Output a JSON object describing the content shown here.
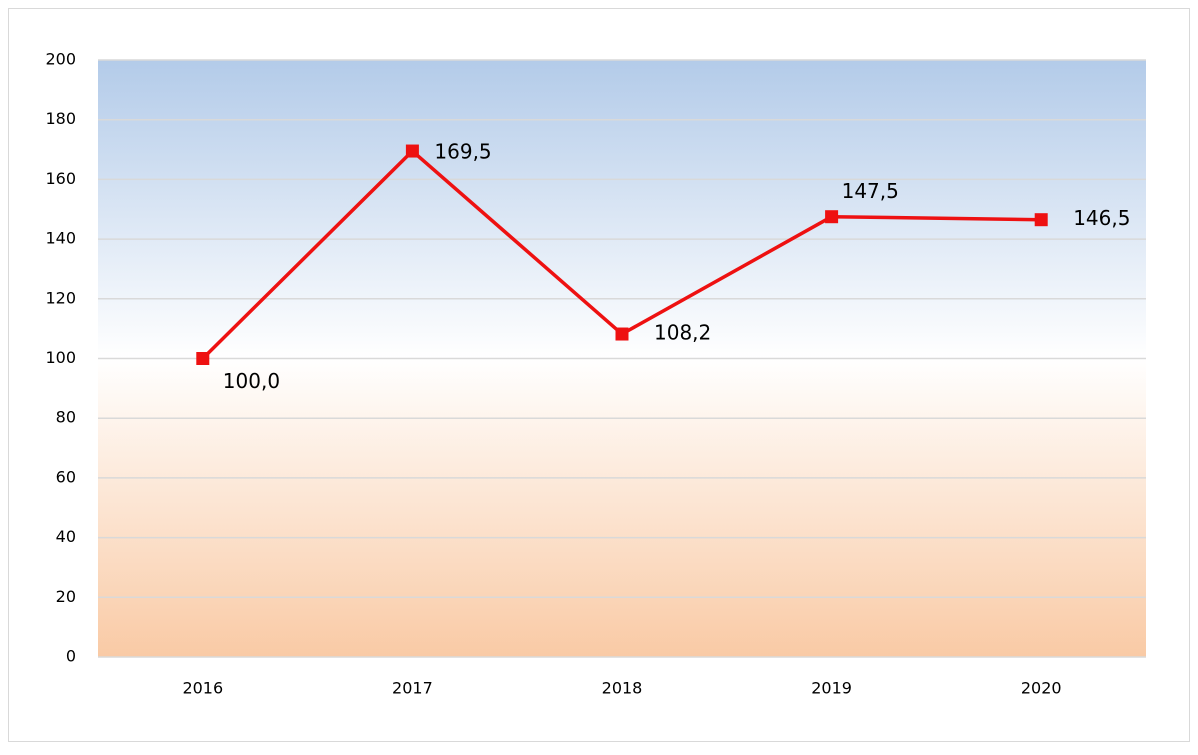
{
  "chart_data": {
    "type": "line",
    "categories": [
      "2016",
      "2017",
      "2018",
      "2019",
      "2020"
    ],
    "series": [
      {
        "name": "",
        "color": "#ee1111",
        "values": [
          100.0,
          169.5,
          108.2,
          147.5,
          146.5
        ],
        "value_labels": [
          "100,0",
          "169,5",
          "108,2",
          "147,5",
          "146,5"
        ]
      }
    ],
    "ylim": [
      0,
      200
    ],
    "yticks": [
      0,
      20,
      40,
      60,
      80,
      100,
      120,
      140,
      160,
      180,
      200
    ],
    "grid": true
  }
}
